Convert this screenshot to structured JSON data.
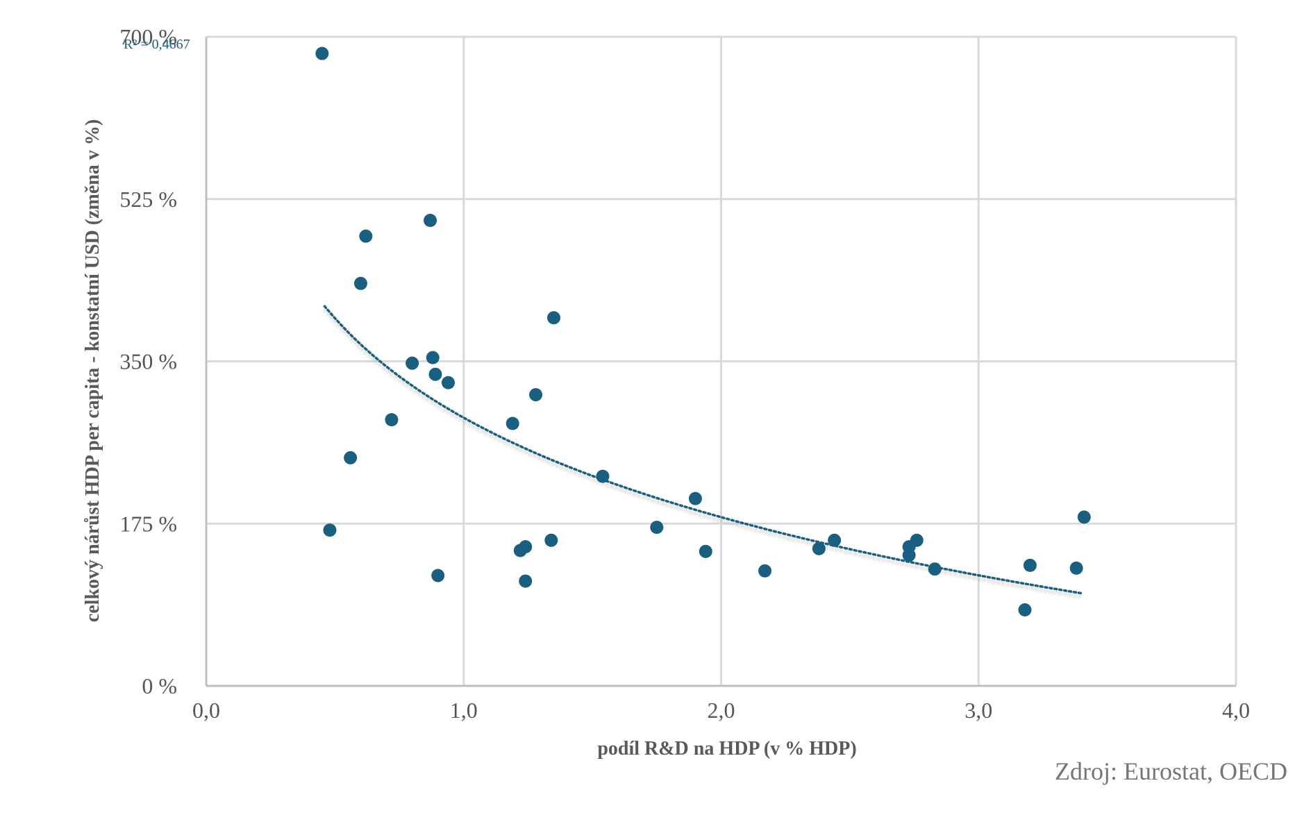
{
  "chart_data": {
    "type": "scatter",
    "xlabel": "podíl R&D na HDP (v % HDP)",
    "ylabel": "celkový nárůst HDP per capita - konstatní USD (změna v %)",
    "xlim": [
      0,
      4
    ],
    "ylim": [
      0,
      700
    ],
    "x_ticks": [
      "0,0",
      "1,0",
      "2,0",
      "3,0",
      "4,0"
    ],
    "y_ticks": [
      "0 %",
      "175 %",
      "350 %",
      "525 %",
      "700 %"
    ],
    "grid": true,
    "color": "#1a5e80",
    "trendline": {
      "type": "logarithmic",
      "style": "dotted",
      "x_range": [
        0.46,
        3.4
      ],
      "annotation": "R² = 0,4667"
    },
    "points": [
      {
        "x": 0.45,
        "y": 682
      },
      {
        "x": 0.48,
        "y": 168
      },
      {
        "x": 0.56,
        "y": 246
      },
      {
        "x": 0.6,
        "y": 434
      },
      {
        "x": 0.62,
        "y": 485
      },
      {
        "x": 0.72,
        "y": 287
      },
      {
        "x": 0.8,
        "y": 348
      },
      {
        "x": 0.87,
        "y": 502
      },
      {
        "x": 0.88,
        "y": 354
      },
      {
        "x": 0.89,
        "y": 336
      },
      {
        "x": 0.9,
        "y": 119
      },
      {
        "x": 0.94,
        "y": 327
      },
      {
        "x": 1.19,
        "y": 283
      },
      {
        "x": 1.22,
        "y": 146
      },
      {
        "x": 1.24,
        "y": 150
      },
      {
        "x": 1.24,
        "y": 113
      },
      {
        "x": 1.28,
        "y": 314
      },
      {
        "x": 1.34,
        "y": 157
      },
      {
        "x": 1.35,
        "y": 397
      },
      {
        "x": 1.54,
        "y": 226
      },
      {
        "x": 1.75,
        "y": 171
      },
      {
        "x": 1.9,
        "y": 202
      },
      {
        "x": 1.94,
        "y": 145
      },
      {
        "x": 2.17,
        "y": 124
      },
      {
        "x": 2.38,
        "y": 148
      },
      {
        "x": 2.44,
        "y": 157
      },
      {
        "x": 2.73,
        "y": 150
      },
      {
        "x": 2.73,
        "y": 141
      },
      {
        "x": 2.76,
        "y": 157
      },
      {
        "x": 2.83,
        "y": 126
      },
      {
        "x": 3.18,
        "y": 82
      },
      {
        "x": 3.2,
        "y": 130
      },
      {
        "x": 3.38,
        "y": 127
      },
      {
        "x": 3.41,
        "y": 182
      }
    ]
  },
  "source": "Zdroj: Eurostat, OECD"
}
